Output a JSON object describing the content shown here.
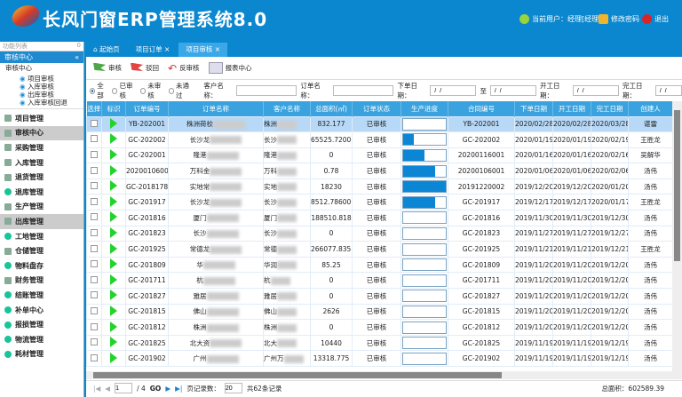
{
  "app": {
    "title": "长风门窗ERP管理系统8.0",
    "user_label": "当前用户：经理[经理]",
    "change_password": "修改密码",
    "logout": "退出"
  },
  "sidebar": {
    "search_placeholder": "功能列表",
    "section_title": "审核中心",
    "tree_root": "审核中心",
    "tree_items": [
      "项目审核",
      "入库审核",
      "出库审核",
      "入库审核回退"
    ],
    "nav": [
      {
        "label": "项目管理",
        "icon": "book-icon"
      },
      {
        "label": "审核中心",
        "icon": "document-icon",
        "selected": true
      },
      {
        "label": "采购管理",
        "icon": "cart-icon"
      },
      {
        "label": "入库管理",
        "icon": "inbound-icon"
      },
      {
        "label": "退货管理",
        "icon": "return-icon"
      },
      {
        "label": "退库管理",
        "icon": "dot-icon"
      },
      {
        "label": "生产管理",
        "icon": "production-icon"
      },
      {
        "label": "出库管理",
        "icon": "outbound-icon",
        "selected": true
      },
      {
        "label": "工地管理",
        "icon": "dot-icon"
      },
      {
        "label": "仓储管理",
        "icon": "warehouse-icon"
      },
      {
        "label": "物料盘存",
        "icon": "dot-icon"
      },
      {
        "label": "财务管理",
        "icon": "finance-icon"
      },
      {
        "label": "结账管理",
        "icon": "dot-icon"
      },
      {
        "label": "补单中心",
        "icon": "dot-icon"
      },
      {
        "label": "报损管理",
        "icon": "dot-icon"
      },
      {
        "label": "物流管理",
        "icon": "dot-icon"
      },
      {
        "label": "耗材管理",
        "icon": "dot-icon"
      }
    ]
  },
  "tabs": [
    {
      "label": "起始页"
    },
    {
      "label": "项目订单"
    },
    {
      "label": "项目审核",
      "active": true
    }
  ],
  "toolbar": {
    "approve": "审核",
    "reject": "驳回",
    "unapprove": "反审核",
    "report": "报表中心"
  },
  "filter": {
    "radios": [
      "全部",
      "已审核",
      "未审核",
      "未通过"
    ],
    "selected": "全部",
    "customer_label": "客户名称：",
    "order_label": "订单名称：",
    "order_date_label": "下单日期：",
    "to_label": "至",
    "start_date_label": "开工日期：",
    "end_date_label": "完工日期：",
    "date_placeholder": "  /  /"
  },
  "table": {
    "columns": [
      "选择",
      "标识",
      "订单编号",
      "订单名称",
      "客户名称",
      "总面积(㎡)",
      "订单状态",
      "生产进度",
      "合同编号",
      "下单日期",
      "开工日期",
      "完工日期",
      "创建人"
    ],
    "rows": [
      {
        "id": "YB-202001",
        "name": "株洲荷校",
        "customer": "株洲",
        "area": "832.177",
        "status": "已审核",
        "progress": 0,
        "contract": "YB-202001",
        "order": "2020/02/28",
        "start": "2020/02/28",
        "end": "2020/03/28",
        "creator": "谌雷"
      },
      {
        "id": "GC-202002",
        "name": "长沙龙",
        "customer": "长沙",
        "area": "65525.7200...",
        "status": "已审核",
        "progress": 25,
        "contract": "GC-202002",
        "order": "2020/01/19",
        "start": "2020/01/19",
        "end": "2020/02/19",
        "creator": "王胜龙"
      },
      {
        "id": "GC-202001",
        "name": "隆港",
        "customer": "隆港",
        "area": "0",
        "status": "已审核",
        "progress": 50,
        "contract": "20200116001",
        "order": "2020/01/16",
        "start": "2020/01/16",
        "end": "2020/02/16",
        "creator": "吴解华"
      },
      {
        "id": "20200106001",
        "name": "万科金",
        "customer": "万科",
        "area": "0.78",
        "status": "已审核",
        "progress": 75,
        "contract": "20200106001",
        "order": "2020/01/06",
        "start": "2020/01/06",
        "end": "2020/02/06",
        "creator": "汤伟"
      },
      {
        "id": "GC-2018178",
        "name": "实地常",
        "customer": "实地",
        "area": "18230",
        "status": "已审核",
        "progress": 100,
        "contract": "20191220002",
        "order": "2019/12/20",
        "start": "2019/12/20",
        "end": "2020/01/20",
        "creator": "汤伟"
      },
      {
        "id": "GC-201917",
        "name": "长沙龙",
        "customer": "长沙",
        "area": "8512.78600...",
        "status": "已审核",
        "progress": 75,
        "contract": "GC-201917",
        "order": "2019/12/17",
        "start": "2019/12/17",
        "end": "2020/01/17",
        "creator": "王胜龙"
      },
      {
        "id": "GC-201816",
        "name": "厦门",
        "customer": "厦门",
        "area": "188510.818",
        "status": "已审核",
        "progress": 0,
        "contract": "GC-201816",
        "order": "2019/11/30",
        "start": "2019/11/30",
        "end": "2019/12/30",
        "creator": "汤伟"
      },
      {
        "id": "GC-201823",
        "name": "长沙",
        "customer": "长沙",
        "area": "0",
        "status": "已审核",
        "progress": 0,
        "contract": "GC-201823",
        "order": "2019/11/27",
        "start": "2019/11/27",
        "end": "2019/12/27",
        "creator": "汤伟"
      },
      {
        "id": "GC-201925",
        "name": "常德龙",
        "customer": "常德",
        "area": "266077.835...",
        "status": "已审核",
        "progress": 0,
        "contract": "GC-201925",
        "order": "2019/11/21",
        "start": "2019/11/21",
        "end": "2019/12/21",
        "creator": "王胜龙"
      },
      {
        "id": "GC-201809",
        "name": "华",
        "customer": "华润",
        "area": "85.25",
        "status": "已审核",
        "progress": 0,
        "contract": "GC-201809",
        "order": "2019/11/20",
        "start": "2019/11/20",
        "end": "2019/12/20",
        "creator": "汤伟"
      },
      {
        "id": "GC-201711",
        "name": "杭",
        "customer": "杭",
        "area": "0",
        "status": "已审核",
        "progress": 0,
        "contract": "GC-201711",
        "order": "2019/11/20",
        "start": "2019/11/20",
        "end": "2019/12/20",
        "creator": "汤伟"
      },
      {
        "id": "GC-201827",
        "name": "雅居",
        "customer": "雅居",
        "area": "0",
        "status": "已审核",
        "progress": 0,
        "contract": "GC-201827",
        "order": "2019/11/20",
        "start": "2019/11/20",
        "end": "2019/12/20",
        "creator": "汤伟"
      },
      {
        "id": "GC-201815",
        "name": "佛山",
        "customer": "佛山",
        "area": "2626",
        "status": "已审核",
        "progress": 0,
        "contract": "GC-201815",
        "order": "2019/11/20",
        "start": "2019/11/20",
        "end": "2019/12/20",
        "creator": "汤伟"
      },
      {
        "id": "GC-201812",
        "name": "株洲",
        "customer": "株洲",
        "area": "0",
        "status": "已审核",
        "progress": 0,
        "contract": "GC-201812",
        "order": "2019/11/20",
        "start": "2019/11/20",
        "end": "2019/12/20",
        "creator": "汤伟"
      },
      {
        "id": "GC-201825",
        "name": "北大资",
        "customer": "北大",
        "area": "10440",
        "status": "已审核",
        "progress": 0,
        "contract": "GC-201825",
        "order": "2019/11/19",
        "start": "2019/11/19",
        "end": "2019/12/19",
        "creator": "汤伟"
      },
      {
        "id": "GC-201902",
        "name": "广州",
        "customer": "广州万",
        "area": "13318.775",
        "status": "已审核",
        "progress": 0,
        "contract": "GC-201902",
        "order": "2019/11/19",
        "start": "2019/11/19",
        "end": "2019/12/19",
        "creator": "汤伟"
      }
    ]
  },
  "pager": {
    "page": "1",
    "total_pages": "/ 4",
    "go": "GO",
    "page_size_label": "页记录数：",
    "page_size": "20",
    "total_records": "共62条记录",
    "total_area": "总面积：602589.39"
  },
  "colors": {
    "header_bg": "#0b87cf",
    "table_header": "#3aa3df",
    "progress": "#0a86d4",
    "flag_green": "#21d32a"
  }
}
